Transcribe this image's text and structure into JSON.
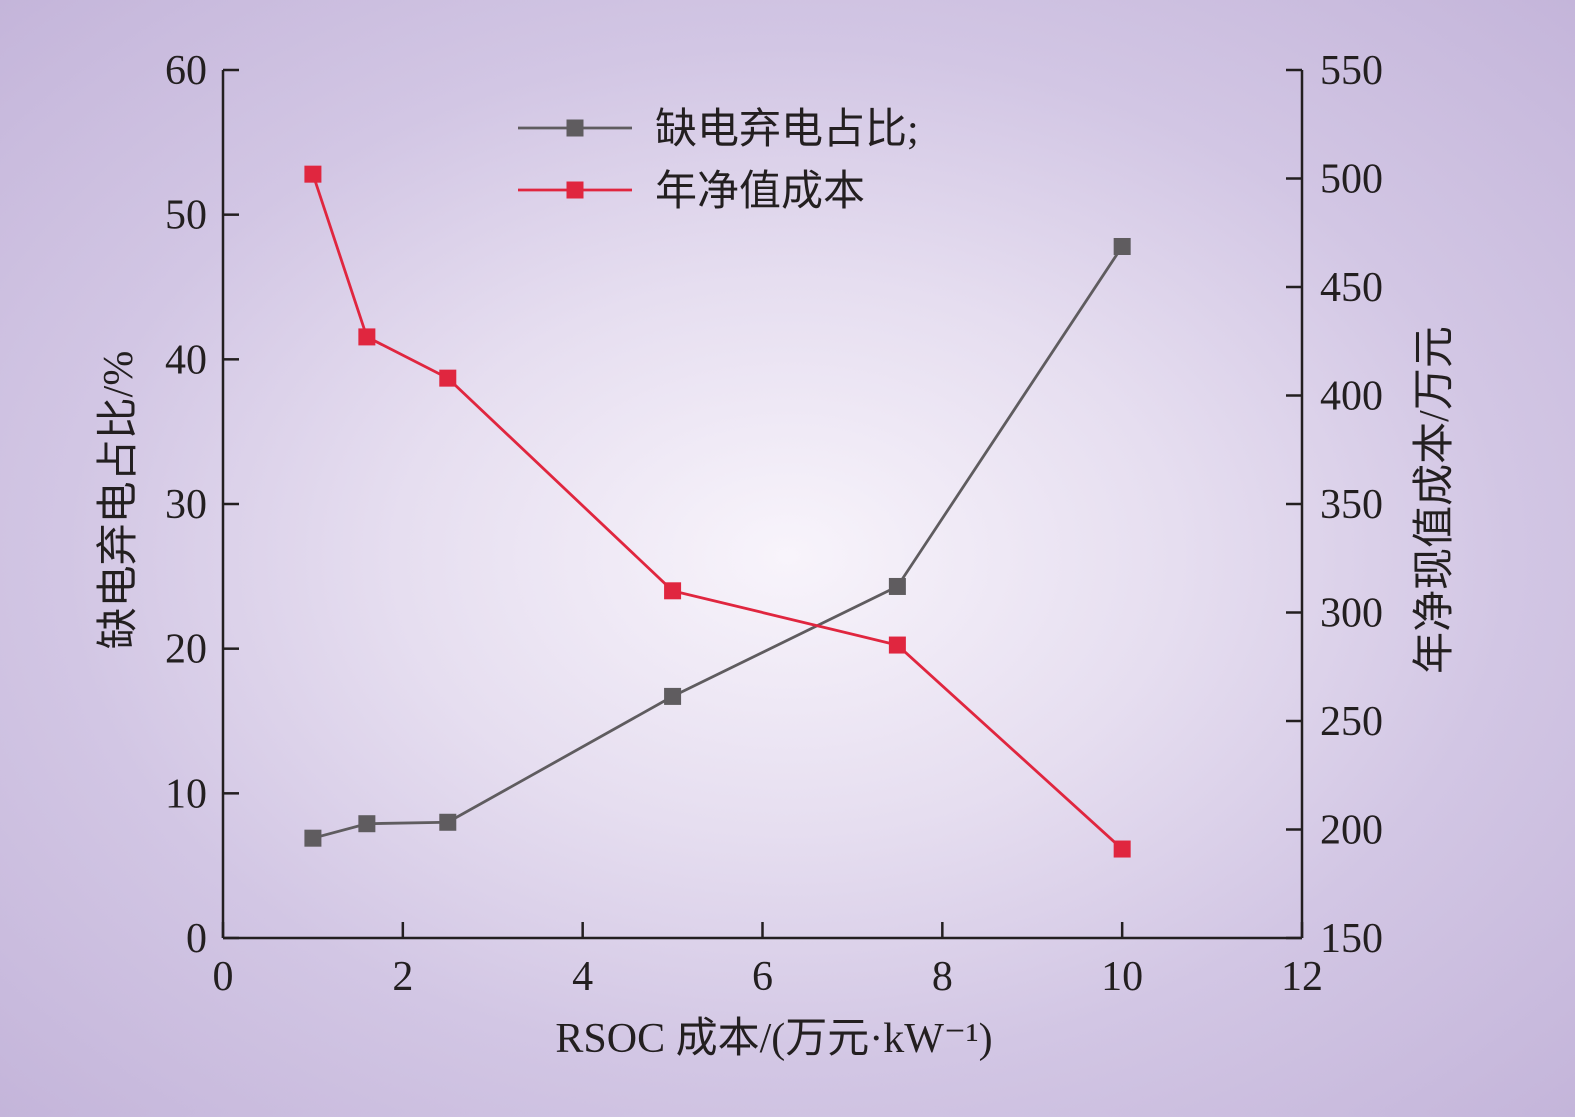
{
  "chart_data": {
    "type": "line",
    "title": "",
    "xlabel": "RSOC 成本/(万元·kW⁻¹)",
    "ylabel_left": "缺电弃电占比/%",
    "ylabel_right": "年净现值成本/万元",
    "xlim": [
      0,
      12
    ],
    "ylim_left": [
      0,
      60
    ],
    "ylim_right": [
      150,
      550
    ],
    "x_ticks": [
      "0",
      "2",
      "4",
      "6",
      "8",
      "10",
      "12"
    ],
    "y_ticks_left": [
      "0",
      "10",
      "20",
      "30",
      "40",
      "50",
      "60"
    ],
    "y_ticks_right": [
      "150",
      "200",
      "250",
      "300",
      "350",
      "400",
      "450",
      "500",
      "550"
    ],
    "grid": false,
    "legend_position": "top-center",
    "series": [
      {
        "name": "缺电弃电占比;",
        "axis": "left",
        "color": "#5f5c5f",
        "marker": "square",
        "x": [
          1,
          1.6,
          2.5,
          5,
          7.5,
          10
        ],
        "values": [
          6.9,
          7.9,
          8.0,
          16.7,
          24.3,
          47.8
        ]
      },
      {
        "name": "年净值成本",
        "axis": "right",
        "color": "#e0263f",
        "marker": "square",
        "x": [
          1,
          1.6,
          2.5,
          5,
          7.5,
          10
        ],
        "values": [
          502,
          427,
          408,
          310,
          285,
          191
        ]
      }
    ]
  }
}
